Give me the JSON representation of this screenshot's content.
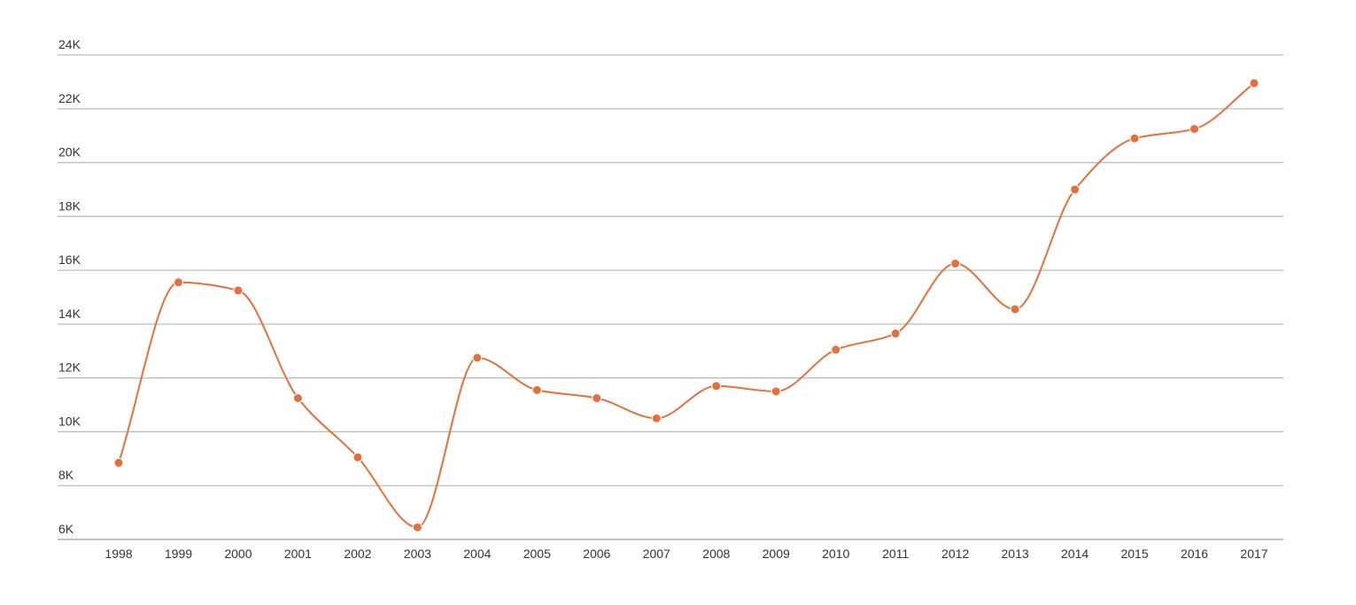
{
  "chart_data": {
    "type": "line",
    "x": [
      "1998",
      "1999",
      "2000",
      "2001",
      "2002",
      "2003",
      "2004",
      "2005",
      "2006",
      "2007",
      "2008",
      "2009",
      "2010",
      "2011",
      "2012",
      "2013",
      "2014",
      "2015",
      "2016",
      "2017"
    ],
    "series": [
      {
        "values": [
          8850,
          15550,
          15250,
          11250,
          9050,
          6450,
          12750,
          11550,
          11250,
          10500,
          11700,
          11500,
          13050,
          13650,
          16250,
          14550,
          19000,
          20900,
          21250,
          22950
        ],
        "color": "#e4703c"
      }
    ],
    "ylim": [
      6000,
      24000
    ],
    "y_ticks": [
      6000,
      8000,
      10000,
      12000,
      14000,
      16000,
      18000,
      20000,
      22000,
      24000
    ],
    "y_tick_labels": [
      "6K",
      "8K",
      "10K",
      "12K",
      "14K",
      "16K",
      "18K",
      "20K",
      "22K",
      "24K"
    ],
    "grid": true,
    "legend": "none",
    "curve": "smooth",
    "markers": true
  }
}
